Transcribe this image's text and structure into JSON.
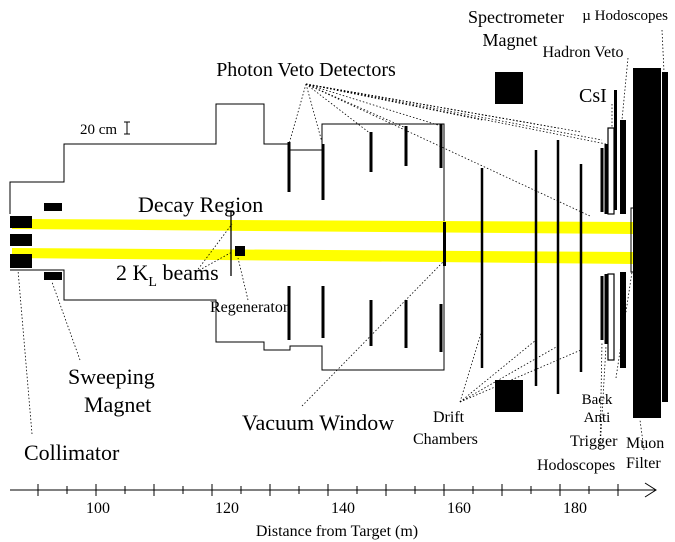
{
  "labels": {
    "spectrometer_magnet_l1": "Spectrometer",
    "spectrometer_magnet_l2": "Magnet",
    "mu_hodoscopes": "µ Hodoscopes",
    "hadron_veto": "Hadron Veto",
    "photon_veto_detectors": "Photon Veto Detectors",
    "csi": "CsI",
    "scale_bar": "20 cm",
    "decay_region": "Decay Region",
    "beams_prefix": "2 K",
    "beams_subscript": "L",
    "beams_suffix": " beams",
    "regenerator": "Regenerator",
    "back_anti_l1": "Back",
    "back_anti_l2": "Anti",
    "sweeping_magnet_l1": "Sweeping",
    "sweeping_magnet_l2": "Magnet",
    "vacuum_window": "Vacuum Window",
    "drift_chambers_l1": "Drift",
    "drift_chambers_l2": "Chambers",
    "collimator": "Collimator",
    "trigger_hodoscopes_l1": "Trigger",
    "trigger_hodoscopes_l2": "Hodoscopes",
    "muon_filter_l1": "Muon",
    "muon_filter_l2": "Filter"
  },
  "axis": {
    "title": "Distance from Target (m)",
    "ticks": [
      "100",
      "120",
      "140",
      "160",
      "180"
    ]
  },
  "colors": {
    "beam": "#ffff00",
    "ink": "#000000"
  }
}
